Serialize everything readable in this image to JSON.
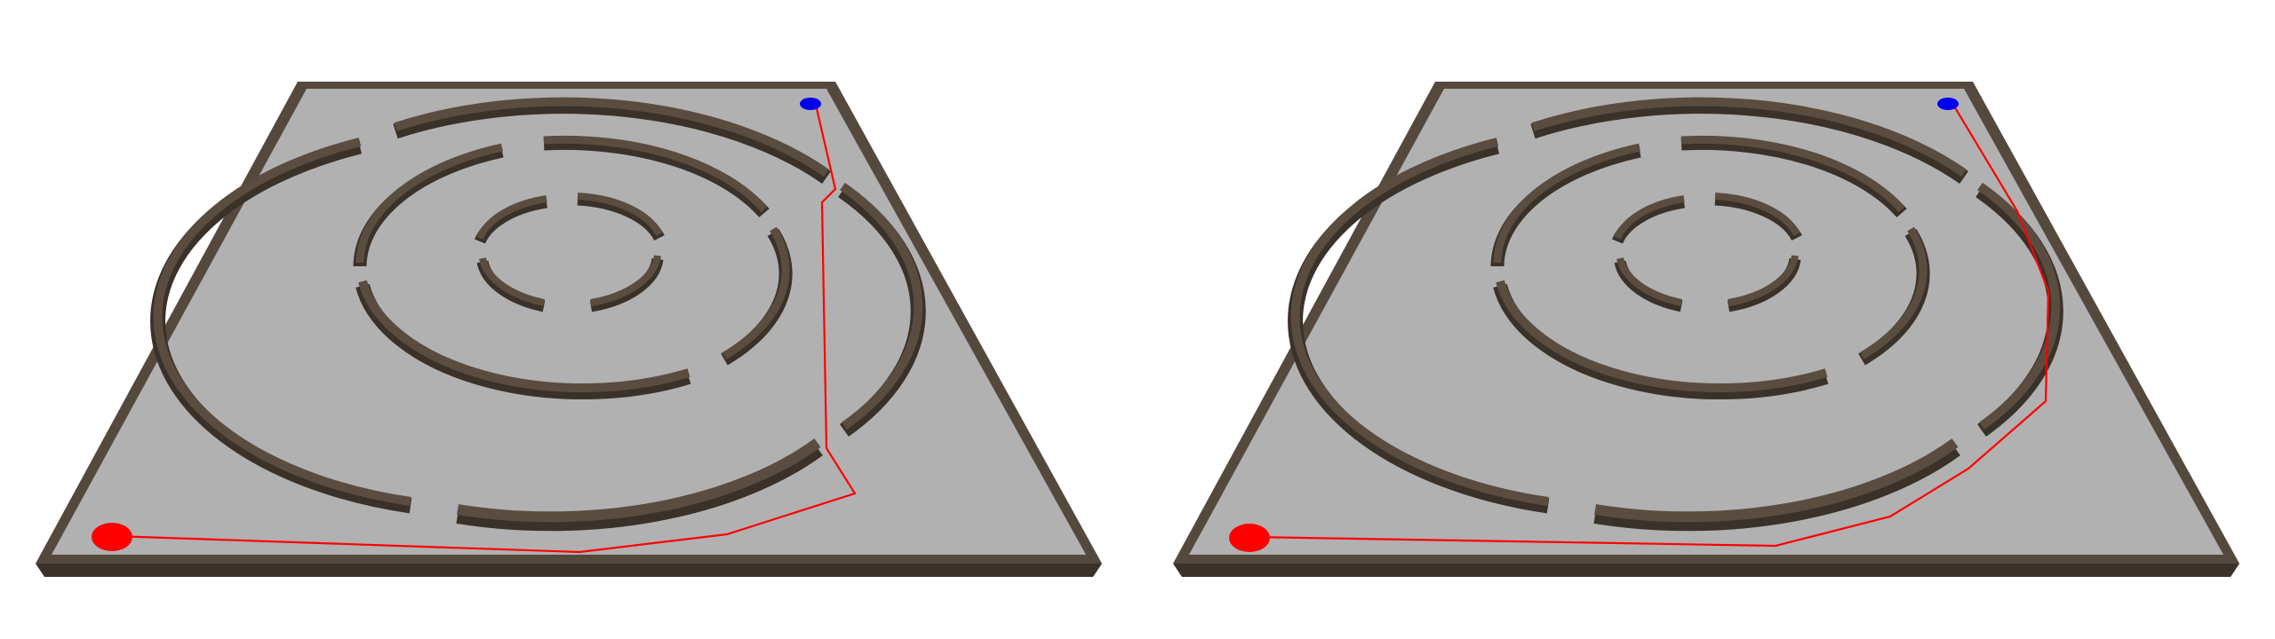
{
  "colors": {
    "background": "#ffffff",
    "floor": "#b1b1b1",
    "wall_top": "#55493d",
    "wall_side": "#3a3128",
    "start_marker": "#ff0000",
    "goal_marker": "#0000ee",
    "path": "#ff0000"
  },
  "icons": {
    "start": "red-start-disc",
    "goal": "blue-goal-disc"
  },
  "panels": [
    {
      "id": "left",
      "path_variant": "inner-corridor-route"
    },
    {
      "id": "right",
      "path_variant": "outer-corridor-route"
    }
  ]
}
